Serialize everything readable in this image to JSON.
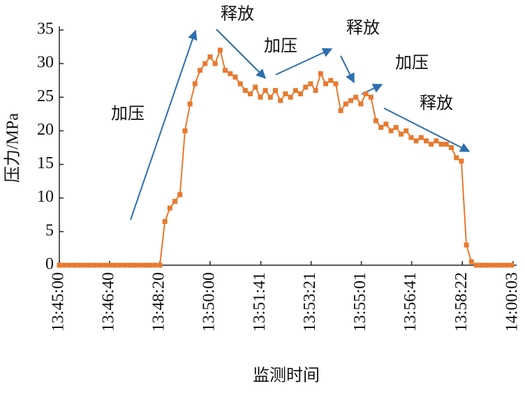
{
  "chart_data": {
    "type": "line",
    "xlabel": "监测时间",
    "ylabel": "压力/MPa",
    "annotations": [
      "加压",
      "释放",
      "加压",
      "释放",
      "加压",
      "释放"
    ],
    "xlim": [
      "13:45:00",
      "14:00:03"
    ],
    "xticks": [
      "13:45:00",
      "13:46:40",
      "13:48:20",
      "13:50:00",
      "13:51:41",
      "13:53:21",
      "13:55:01",
      "13:56:41",
      "13:58:22",
      "14:00:03"
    ],
    "ylim": [
      0,
      35
    ],
    "yticks": [
      0,
      5,
      10,
      15,
      20,
      25,
      30,
      35
    ],
    "x": [
      "13:45:00",
      "13:45:10",
      "13:45:20",
      "13:45:30",
      "13:45:40",
      "13:45:50",
      "13:46:00",
      "13:46:10",
      "13:46:20",
      "13:46:30",
      "13:46:40",
      "13:46:50",
      "13:47:00",
      "13:47:10",
      "13:47:20",
      "13:47:30",
      "13:47:40",
      "13:47:50",
      "13:48:00",
      "13:48:10",
      "13:48:20",
      "13:48:30",
      "13:48:40",
      "13:48:50",
      "13:49:00",
      "13:49:10",
      "13:49:20",
      "13:49:30",
      "13:49:40",
      "13:49:50",
      "13:50:00",
      "13:50:10",
      "13:50:20",
      "13:50:30",
      "13:50:40",
      "13:50:50",
      "13:51:00",
      "13:51:10",
      "13:51:20",
      "13:51:30",
      "13:51:40",
      "13:51:50",
      "13:52:00",
      "13:52:10",
      "13:52:20",
      "13:52:30",
      "13:52:40",
      "13:52:50",
      "13:53:00",
      "13:53:10",
      "13:53:20",
      "13:53:30",
      "13:53:40",
      "13:53:50",
      "13:54:00",
      "13:54:10",
      "13:54:20",
      "13:54:30",
      "13:54:40",
      "13:54:50",
      "13:55:00",
      "13:55:10",
      "13:55:20",
      "13:55:30",
      "13:55:40",
      "13:55:50",
      "13:56:00",
      "13:56:10",
      "13:56:20",
      "13:56:30",
      "13:56:40",
      "13:56:50",
      "13:57:00",
      "13:57:10",
      "13:57:20",
      "13:57:30",
      "13:57:40",
      "13:57:50",
      "13:58:00",
      "13:58:10",
      "13:58:20",
      "13:58:30",
      "13:58:40",
      "13:58:50",
      "13:59:00",
      "13:59:10",
      "13:59:20",
      "13:59:30",
      "13:59:40",
      "13:59:50",
      "14:00:00"
    ],
    "series": [
      {
        "name": "压力",
        "color": "#e8792e",
        "values": [
          0,
          0,
          0,
          0,
          0,
          0,
          0,
          0,
          0,
          0,
          0,
          0,
          0,
          0,
          0,
          0,
          0,
          0,
          0,
          0,
          0,
          6.5,
          8.5,
          9.5,
          10.5,
          20,
          24,
          27,
          29,
          30,
          31,
          30,
          32,
          29,
          28.5,
          28,
          27,
          26,
          25.5,
          26.5,
          25,
          26,
          25,
          26,
          24.5,
          25.5,
          25,
          26,
          25.5,
          26.5,
          27,
          26,
          28.5,
          27,
          27.5,
          27,
          23,
          24,
          24.5,
          25,
          24,
          25.5,
          25,
          21.5,
          20.5,
          21,
          20,
          20.5,
          19.5,
          20,
          19,
          18.5,
          19,
          18.5,
          18,
          18.5,
          18,
          18,
          17.5,
          16,
          15.5,
          3,
          0.5,
          0,
          0,
          0,
          0,
          0,
          0,
          0,
          0
        ]
      }
    ]
  }
}
